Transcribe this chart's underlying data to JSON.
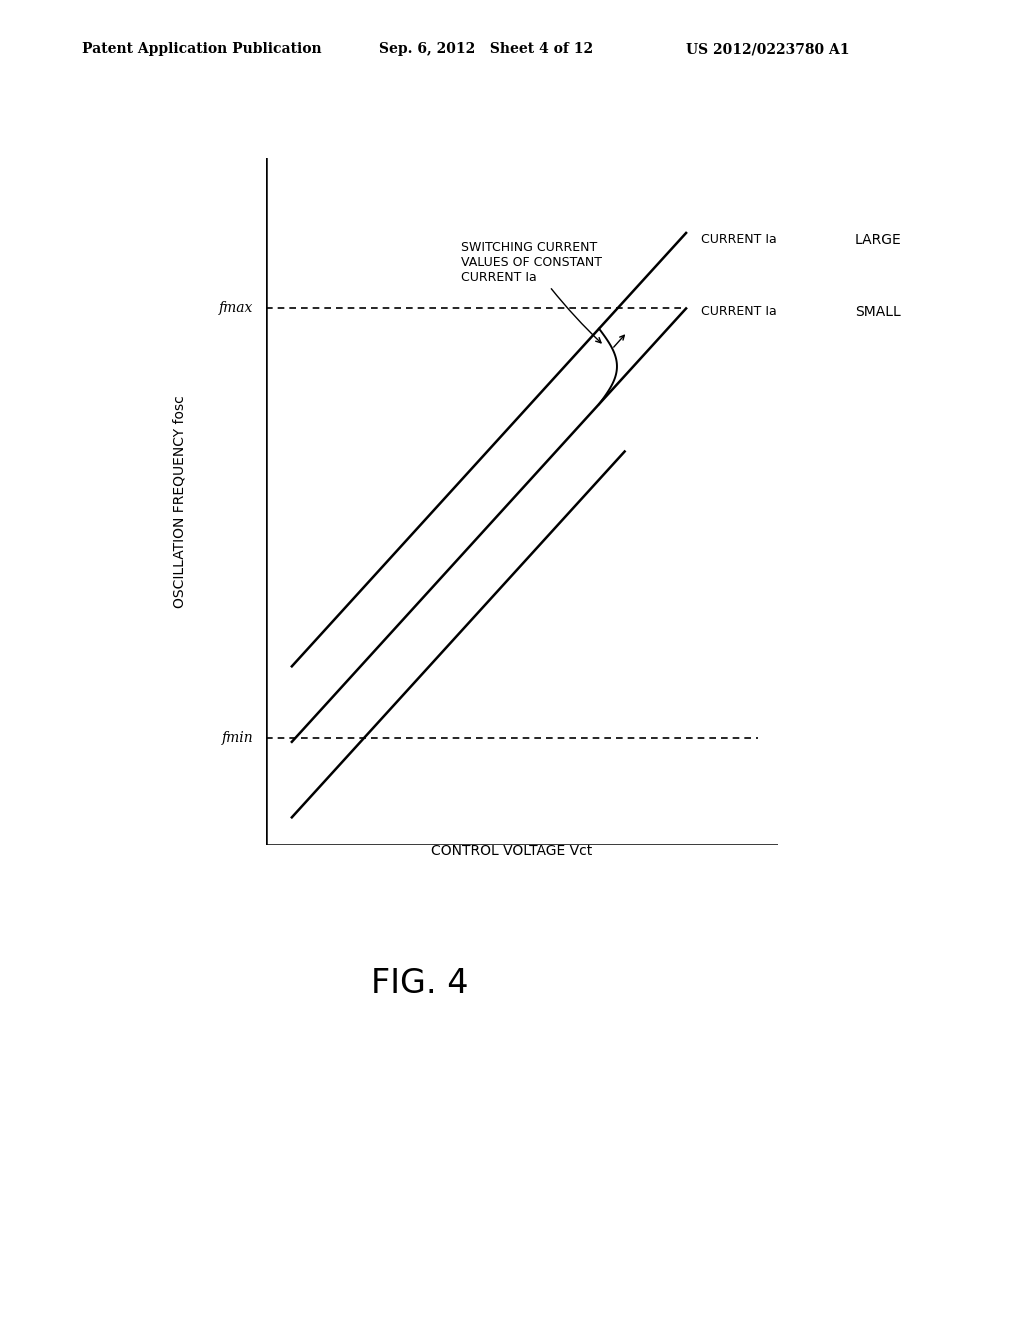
{
  "header_left": "Patent Application Publication",
  "header_mid": "Sep. 6, 2012   Sheet 4 of 12",
  "header_right": "US 2012/0223780 A1",
  "fig_label": "FIG. 4",
  "xlabel": "CONTROL VOLTAGE Vct",
  "ylabel": "OSCILLATION FREQUENCY fosc",
  "fmax_label": "fmax",
  "fmin_label": "fmin",
  "annotation_title": "SWITCHING CURRENT\nVALUES OF CONSTANT\nCURRENT Ia",
  "label_large_current": "CURRENT Ia",
  "label_small_current": "CURRENT Ia",
  "label_large": "LARGE",
  "label_small": "SMALL",
  "background_color": "#ffffff",
  "line_color": "#000000"
}
